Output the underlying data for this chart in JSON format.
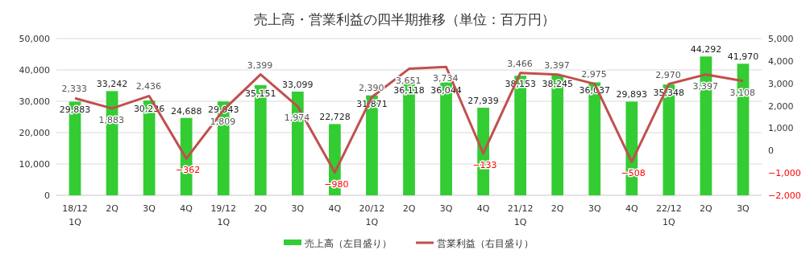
{
  "chart_data": {
    "type": "bar",
    "title": "売上高・営業利益の四半期推移（単位：百万円）",
    "categories": [
      "18/12\n1Q",
      "2Q",
      "3Q",
      "4Q",
      "19/12\n1Q",
      "2Q",
      "3Q",
      "4Q",
      "20/12\n1Q",
      "2Q",
      "3Q",
      "4Q",
      "21/12\n1Q",
      "2Q",
      "3Q",
      "4Q",
      "22/12\n1Q",
      "2Q",
      "3Q"
    ],
    "series": [
      {
        "name": "売上高（左目盛り）",
        "type": "bar",
        "color": "#33cc33",
        "values": [
          29883,
          33242,
          30236,
          24688,
          29943,
          35151,
          33099,
          22728,
          31871,
          36118,
          36044,
          27939,
          38153,
          38245,
          36037,
          29893,
          35348,
          44292,
          41970
        ],
        "value_labels": [
          "29,883",
          "33,242",
          "30,236",
          "24,688",
          "29,943",
          "35,151",
          "33,099",
          "22,728",
          "31,871",
          "36,118",
          "36,044",
          "27,939",
          "38,153",
          "38,245",
          "36,037",
          "29,893",
          "35,348",
          "44,292",
          "41,970"
        ]
      },
      {
        "name": "営業利益（右目盛り）",
        "type": "line",
        "axis": "y2",
        "color": "#c0504d",
        "values": [
          2333,
          1883,
          2436,
          -362,
          1809,
          3399,
          1974,
          -980,
          2390,
          3651,
          3734,
          -133,
          3466,
          3397,
          2975,
          -508,
          2970,
          3397,
          3108
        ],
        "value_labels": [
          "2,333",
          "1,883",
          "2,436",
          "−362",
          "1,809",
          "3,399",
          "1,974",
          "−980",
          "2,390",
          "3,651",
          "3,734",
          "−133",
          "3,466",
          "3,397",
          "2,975",
          "−508",
          "2,970",
          "3,397",
          "3,108"
        ]
      }
    ],
    "ylim": [
      0,
      50000
    ],
    "yticks": [
      {
        "value": 0,
        "label": "0"
      },
      {
        "value": 10000,
        "label": "10,000"
      },
      {
        "value": 20000,
        "label": "20,000"
      },
      {
        "value": 30000,
        "label": "30,000"
      },
      {
        "value": 40000,
        "label": "40,000"
      },
      {
        "value": 50000,
        "label": "50,000"
      }
    ],
    "y2lim": [
      -2000,
      5000
    ],
    "y2ticks": [
      {
        "value": -2000,
        "label": "−2,000"
      },
      {
        "value": -1000,
        "label": "−1,000"
      },
      {
        "value": 0,
        "label": "0"
      },
      {
        "value": 1000,
        "label": "1,000"
      },
      {
        "value": 2000,
        "label": "2,000"
      },
      {
        "value": 3000,
        "label": "3,000"
      },
      {
        "value": 4000,
        "label": "4,000"
      },
      {
        "value": 5000,
        "label": "5,000"
      }
    ],
    "grid": "y",
    "legend": "bottom"
  }
}
